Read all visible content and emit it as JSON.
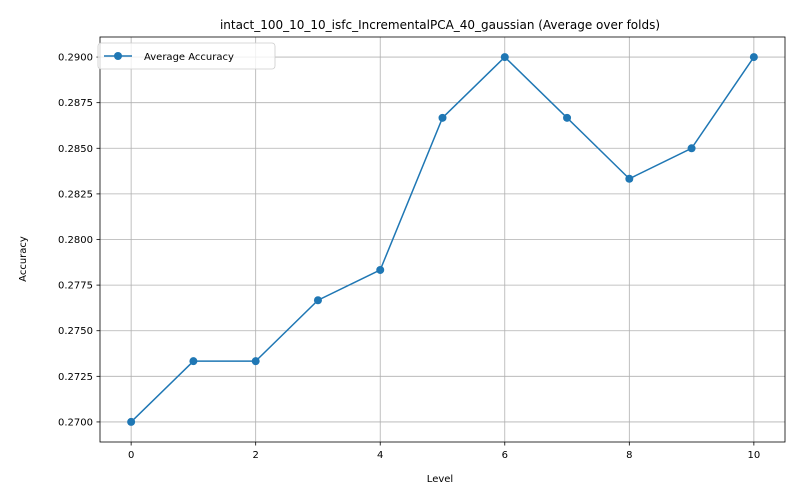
{
  "chart_data": {
    "type": "line",
    "title": "intact_100_10_10_isfc_IncrementalPCA_40_gaussian (Average over folds)",
    "xlabel": "Level",
    "ylabel": "Accuracy",
    "x": [
      0,
      1,
      2,
      3,
      4,
      5,
      6,
      7,
      8,
      9,
      10
    ],
    "series": [
      {
        "name": "Average Accuracy",
        "values": [
          0.27,
          0.27333,
          0.27333,
          0.27667,
          0.27833,
          0.28667,
          0.29,
          0.28667,
          0.28333,
          0.285,
          0.29
        ],
        "color": "#1f77b4",
        "marker": "circle"
      }
    ],
    "xlim": [
      -0.5,
      10.5
    ],
    "ylim": [
      0.2689,
      0.2911
    ],
    "xticks": [
      0,
      2,
      4,
      6,
      8,
      10
    ],
    "xtick_labels": [
      "0",
      "2",
      "4",
      "6",
      "8",
      "10"
    ],
    "yticks": [
      0.27,
      0.2725,
      0.275,
      0.2775,
      0.28,
      0.2825,
      0.285,
      0.2875,
      0.29
    ],
    "ytick_labels": [
      "0.2700",
      "0.2725",
      "0.2750",
      "0.2775",
      "0.2800",
      "0.2825",
      "0.2850",
      "0.2875",
      "0.2900"
    ],
    "grid": true,
    "legend_position": "top-left"
  }
}
